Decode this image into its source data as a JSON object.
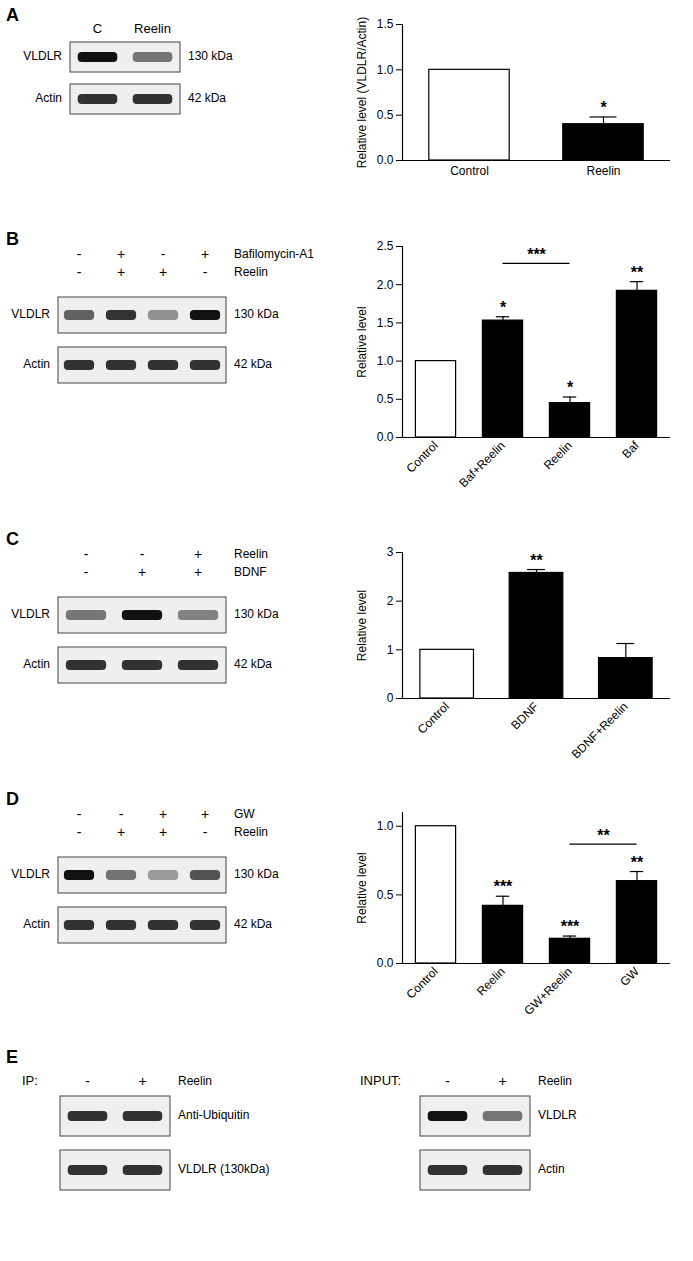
{
  "chart_data": [
    {
      "panel": "A",
      "type": "bar",
      "categories": [
        "Control",
        "Reelin"
      ],
      "values": [
        1.0,
        0.4
      ],
      "errors": [
        null,
        0.08
      ],
      "colors": [
        "#ffffff",
        "#000000"
      ],
      "significance": [
        null,
        "*"
      ],
      "y_label": "Relative level (VLDLR/Actin)",
      "ylim": [
        0,
        1.5
      ],
      "yticks": [
        {
          "value": 0,
          "label": "0.0"
        },
        0.5,
        {
          "value": 1,
          "label": "1.0"
        },
        1.5
      ]
    },
    {
      "panel": "B",
      "type": "bar",
      "categories": [
        "Control",
        "Baf+Reelin",
        "Reelin",
        "Baf"
      ],
      "values": [
        1.0,
        1.53,
        0.45,
        1.92
      ],
      "errors": [
        null,
        0.05,
        0.08,
        0.12
      ],
      "colors": [
        "#ffffff",
        "#000000",
        "#000000",
        "#000000"
      ],
      "significance": [
        null,
        "*",
        "*",
        "**"
      ],
      "y_label": "Relative level",
      "brackets": [
        {
          "from": "Baf+Reelin",
          "to": "Reelin",
          "y": 2.28,
          "label": "***"
        }
      ],
      "ylim": [
        0,
        2.5
      ],
      "yticks": [
        {
          "value": 0,
          "label": "0.0"
        },
        0.5,
        {
          "value": 1,
          "label": "1.0"
        },
        1.5,
        {
          "value": 2,
          "label": "2.0"
        },
        2.5
      ]
    },
    {
      "panel": "C",
      "type": "bar",
      "categories": [
        "Control",
        "BDNF",
        "BDNF+Reelin"
      ],
      "values": [
        1.0,
        2.58,
        0.83
      ],
      "errors": [
        null,
        0.07,
        0.3
      ],
      "colors": [
        "#ffffff",
        "#000000",
        "#000000"
      ],
      "significance": [
        null,
        "**",
        null
      ],
      "y_label": "Relative level",
      "ylim": [
        0,
        3
      ],
      "yticks": [
        0,
        1,
        2,
        3
      ]
    },
    {
      "panel": "D",
      "type": "bar",
      "categories": [
        "Control",
        "Reelin",
        "GW+Reelin",
        "GW"
      ],
      "values": [
        1.0,
        0.42,
        0.18,
        0.6
      ],
      "errors": [
        null,
        0.07,
        0.02,
        0.07
      ],
      "colors": [
        "#ffffff",
        "#000000",
        "#000000",
        "#000000"
      ],
      "significance": [
        null,
        "***",
        "***",
        "**"
      ],
      "y_label": "Relative level",
      "brackets": [
        {
          "from": "GW+Reelin",
          "to": "GW",
          "y": 0.87,
          "label": "**"
        }
      ],
      "ylim": [
        0,
        1.1
      ],
      "yticks": [
        {
          "value": 0,
          "label": "0.0"
        },
        0.5,
        {
          "value": 1,
          "label": "1.0"
        }
      ]
    }
  ],
  "blots": [
    {
      "panel": "A",
      "lanes": [
        "C",
        "Reelin"
      ],
      "rows": [
        {
          "label": "VLDLR",
          "size": "130 kDa"
        },
        {
          "label": "Actin",
          "size": "42 kDa"
        }
      ]
    },
    {
      "panel": "B",
      "treatments": [
        {
          "name": "Bafilomycin-A1",
          "signs": [
            "-",
            "+",
            "-",
            "+"
          ]
        },
        {
          "name": "Reelin",
          "signs": [
            "-",
            "+",
            "+",
            "-"
          ]
        }
      ],
      "rows": [
        {
          "label": "VLDLR",
          "size": "130 kDa"
        },
        {
          "label": "Actin",
          "size": "42 kDa"
        }
      ]
    },
    {
      "panel": "C",
      "treatments": [
        {
          "name": "Reelin",
          "signs": [
            "-",
            "-",
            "+"
          ]
        },
        {
          "name": "BDNF",
          "signs": [
            "-",
            "+",
            "+"
          ]
        }
      ],
      "rows": [
        {
          "label": "VLDLR",
          "size": "130 kDa"
        },
        {
          "label": "Actin",
          "size": "42 kDa"
        }
      ]
    },
    {
      "panel": "D",
      "treatments": [
        {
          "name": "GW",
          "signs": [
            "-",
            "-",
            "+",
            "+"
          ]
        },
        {
          "name": "Reelin",
          "signs": [
            "-",
            "+",
            "+",
            "-"
          ]
        }
      ],
      "rows": [
        {
          "label": "VLDLR",
          "size": "130 kDa"
        },
        {
          "label": "Actin",
          "size": "42 kDa"
        }
      ]
    },
    {
      "panel": "E",
      "ip": {
        "label": "IP:",
        "treatment": {
          "name": "Reelin",
          "signs": [
            "-",
            "+"
          ]
        },
        "rows": [
          "Anti-Ubiquitin",
          "VLDLR (130kDa)"
        ]
      },
      "input": {
        "label": "INPUT:",
        "treatment": {
          "name": "Reelin",
          "signs": [
            "-",
            "+"
          ]
        },
        "rows": [
          "VLDLR",
          "Actin"
        ]
      }
    }
  ]
}
